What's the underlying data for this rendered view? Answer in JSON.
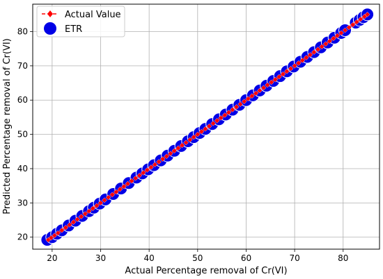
{
  "chart_data": {
    "type": "scatter",
    "title": "",
    "xlabel": "Actual Percentage removal of Cr(VI)",
    "ylabel": "Predicted Percentage removal of Cr(VI)",
    "xlim": [
      16,
      87.5
    ],
    "ylim": [
      16.5,
      88
    ],
    "xticks": [
      20,
      30,
      40,
      50,
      60,
      70,
      80
    ],
    "yticks": [
      20,
      30,
      40,
      50,
      60,
      70,
      80
    ],
    "grid": true,
    "legend_position": "top-left",
    "series": [
      {
        "name": "Actual Value",
        "style": "red dashed line with diamond markers",
        "color": "#ff0000",
        "x": [
          19.2,
          19.8,
          20.5,
          21.2,
          22.0,
          22.8,
          23.6,
          24.4,
          25.2,
          26.0,
          26.8,
          27.6,
          28.4,
          29.2,
          30.0,
          30.8,
          31.6,
          32.4,
          33.2,
          34.0,
          34.8,
          35.6,
          36.4,
          37.2,
          38.0,
          38.8,
          39.6,
          40.4,
          41.2,
          42.0,
          42.8,
          43.6,
          44.4,
          45.2,
          46.0,
          46.8,
          47.6,
          48.4,
          49.2,
          50.0,
          50.8,
          51.6,
          52.4,
          53.2,
          54.0,
          54.8,
          55.6,
          56.4,
          57.2,
          58.0,
          58.8,
          59.6,
          60.4,
          61.2,
          62.0,
          62.8,
          63.6,
          64.4,
          65.2,
          66.0,
          66.8,
          67.6,
          68.4,
          69.2,
          70.0,
          70.8,
          71.6,
          72.4,
          73.2,
          74.0,
          74.8,
          75.6,
          76.4,
          77.2,
          78.0,
          78.8,
          79.6,
          80.4,
          81.2,
          82.0,
          82.8,
          83.6,
          84.4,
          85.0
        ],
        "y": [
          19.2,
          19.8,
          20.5,
          21.2,
          22.0,
          22.8,
          23.6,
          24.4,
          25.2,
          26.0,
          26.8,
          27.6,
          28.4,
          29.2,
          30.0,
          30.8,
          31.6,
          32.4,
          33.2,
          34.0,
          34.8,
          35.6,
          36.4,
          37.2,
          38.0,
          38.8,
          39.6,
          40.4,
          41.2,
          42.0,
          42.8,
          43.6,
          44.4,
          45.2,
          46.0,
          46.8,
          47.6,
          48.4,
          49.2,
          50.0,
          50.8,
          51.6,
          52.4,
          53.2,
          54.0,
          54.8,
          55.6,
          56.4,
          57.2,
          58.0,
          58.8,
          59.6,
          60.4,
          61.2,
          62.0,
          62.8,
          63.6,
          64.4,
          65.2,
          66.0,
          66.8,
          67.6,
          68.4,
          69.2,
          70.0,
          70.8,
          71.6,
          72.4,
          73.2,
          74.0,
          74.8,
          75.6,
          76.4,
          77.2,
          78.0,
          78.8,
          79.6,
          80.4,
          81.2,
          82.0,
          82.8,
          83.6,
          84.4,
          85.0
        ]
      },
      {
        "name": "ETR",
        "style": "large filled circles",
        "color": "#0000e6",
        "x": [
          19.0,
          20.0,
          21.0,
          22.0,
          23.4,
          24.8,
          26.2,
          27.6,
          28.6,
          29.8,
          31.0,
          32.6,
          34.2,
          35.8,
          37.4,
          38.6,
          39.8,
          41.0,
          42.4,
          43.8,
          45.2,
          46.6,
          48.0,
          49.2,
          50.4,
          51.6,
          53.0,
          54.4,
          55.8,
          57.2,
          58.6,
          60.0,
          61.4,
          62.8,
          64.2,
          65.6,
          67.0,
          68.4,
          69.8,
          71.2,
          72.6,
          74.0,
          75.4,
          76.8,
          78.2,
          79.6,
          80.4,
          82.6,
          83.4,
          84.2,
          85.0
        ],
        "y": [
          19.2,
          20.0,
          21.0,
          22.0,
          23.4,
          24.8,
          26.2,
          27.6,
          28.6,
          29.8,
          31.0,
          32.6,
          34.2,
          35.8,
          37.4,
          38.6,
          39.8,
          41.0,
          42.4,
          43.8,
          45.2,
          46.6,
          48.0,
          49.2,
          50.4,
          51.6,
          53.0,
          54.4,
          55.8,
          57.2,
          58.6,
          60.0,
          61.4,
          62.8,
          64.2,
          65.6,
          67.0,
          68.4,
          69.8,
          71.2,
          72.6,
          74.0,
          75.4,
          76.8,
          78.2,
          79.6,
          80.4,
          82.6,
          83.4,
          84.2,
          85.0
        ]
      }
    ]
  }
}
